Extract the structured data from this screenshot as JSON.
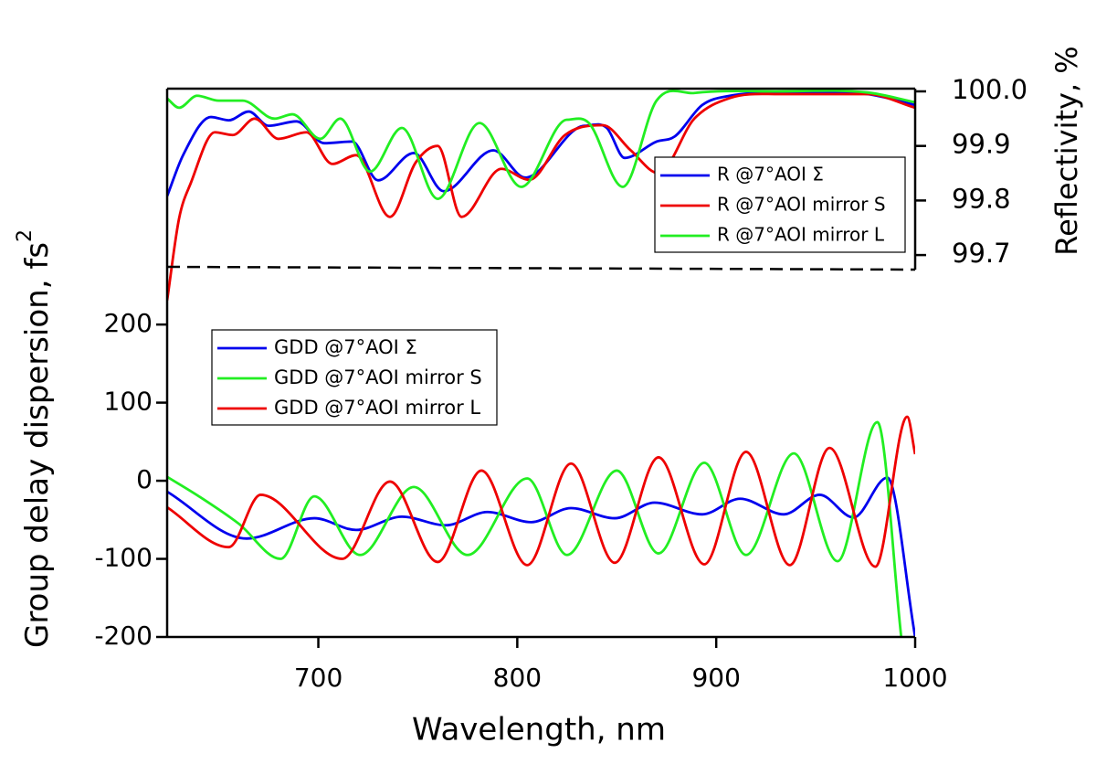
{
  "chart_data": {
    "type": "line",
    "xlabel": "Wavelength, nm",
    "ylabel": "Group delay dispersion, fs",
    "ylabel_superscript": "2",
    "y2label": "Reflectivity, %",
    "xlim": [
      624,
      1000
    ],
    "xticks": [
      700,
      800,
      900,
      1000
    ],
    "ylim": [
      -200,
      502
    ],
    "yticks": [
      -200,
      -100,
      0,
      100,
      200
    ],
    "y2lim": [
      99.0,
      100.005
    ],
    "y2ticks": [
      99.7,
      99.8,
      99.9,
      {
        "value": 100.0,
        "label": "100.0"
      }
    ],
    "legend": "upper left",
    "legend_y2": "upper right",
    "series": [
      {
        "name": "R @7°AOI Σ",
        "color": "#0000ee",
        "axis": "y2",
        "x": [
          624,
          632,
          646,
          655,
          665,
          675,
          689,
          703,
          717,
          730,
          748,
          763,
          788,
          804,
          834,
          845,
          854,
          870,
          879,
          893,
          907,
          930,
          976,
          1000
        ],
        "values": [
          99.808,
          99.883,
          99.953,
          99.947,
          99.963,
          99.937,
          99.945,
          99.905,
          99.908,
          99.837,
          99.887,
          99.817,
          99.892,
          99.842,
          99.937,
          99.933,
          99.878,
          99.908,
          99.917,
          99.975,
          99.992,
          99.997,
          99.995,
          99.975
        ]
      },
      {
        "name": "R @7°AOI mirror S",
        "color": "#ee0000",
        "axis": "y2",
        "x": [
          624,
          630,
          636,
          648,
          657,
          668,
          680,
          694,
          707,
          719,
          736,
          749,
          760,
          772,
          792,
          806,
          824,
          843,
          857,
          871,
          889,
          907,
          930,
          976,
          1000
        ],
        "values": [
          99.617,
          99.767,
          99.833,
          99.925,
          99.92,
          99.95,
          99.913,
          99.925,
          99.867,
          99.883,
          99.77,
          99.87,
          99.9,
          99.77,
          99.858,
          99.838,
          99.92,
          99.938,
          99.892,
          99.85,
          99.95,
          99.988,
          99.995,
          99.995,
          99.97
        ]
      },
      {
        "name": "R @7°AOI mirror L",
        "color": "#22ee22",
        "axis": "y2",
        "x": [
          624,
          630,
          639,
          650,
          662,
          678,
          687,
          701,
          711,
          726,
          742,
          760,
          781,
          802,
          825,
          836,
          853,
          870,
          889,
          930,
          976,
          1000
        ],
        "values": [
          99.987,
          99.97,
          99.992,
          99.983,
          99.983,
          99.95,
          99.958,
          99.913,
          99.95,
          99.853,
          99.933,
          99.803,
          99.942,
          99.825,
          99.948,
          99.942,
          99.825,
          99.983,
          99.997,
          100.0,
          99.998,
          99.98
        ]
      },
      {
        "name": "GDD @7°AOI Σ",
        "color": "#0000ee",
        "x": [
          624,
          664,
          698,
          719,
          742,
          764,
          785,
          807,
          827,
          849,
          869,
          893,
          912,
          934,
          952,
          969,
          986,
          1000
        ],
        "values": [
          -14,
          -74,
          -48,
          -63,
          -46,
          -57,
          -40,
          -53,
          -35,
          -48,
          -28,
          -43,
          -23,
          -43,
          -18,
          -47,
          4,
          -200
        ]
      },
      {
        "name": "GDD @7°AOI mirror S",
        "color": "#22ee22",
        "x": [
          624,
          640,
          660,
          681,
          698,
          721,
          748,
          775,
          805,
          825,
          850,
          871,
          894,
          915,
          939,
          961,
          981,
          993
        ],
        "values": [
          5,
          -20,
          -55,
          -100,
          -20,
          -95,
          -8,
          -95,
          3,
          -95,
          13,
          -93,
          23,
          -95,
          35,
          -103,
          75,
          -200
        ]
      },
      {
        "name": "GDD @7°AOI mirror L",
        "color": "#ee0000",
        "x": [
          624,
          655,
          671,
          712,
          736,
          760,
          782,
          805,
          827,
          849,
          871,
          894,
          915,
          937,
          957,
          980,
          996,
          1000
        ],
        "values": [
          -34,
          -85,
          -18,
          -100,
          -1,
          -104,
          13,
          -108,
          22,
          -105,
          30,
          -107,
          37,
          -108,
          42,
          -110,
          82,
          34
        ]
      }
    ]
  }
}
